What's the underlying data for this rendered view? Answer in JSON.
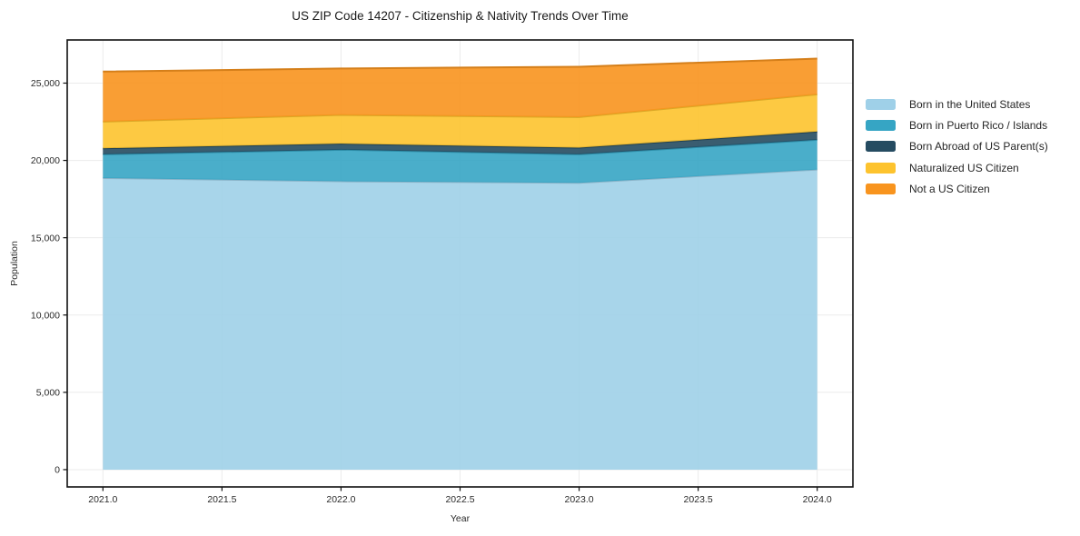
{
  "title": "US ZIP Code 14207 - Citizenship & Nativity Trends Over Time",
  "chart_data": {
    "type": "area",
    "stacked": true,
    "title": "US ZIP Code 14207 - Citizenship & Nativity Trends Over Time",
    "xlabel": "Year",
    "ylabel": "Population",
    "x": [
      2021,
      2022,
      2023,
      2024
    ],
    "series": [
      {
        "name": "Born in the United States",
        "color": "#9fd0e8",
        "values": [
          18860,
          18650,
          18550,
          19410
        ]
      },
      {
        "name": "Born in Puerto Rico / Islands",
        "color": "#36a5c4",
        "values": [
          1530,
          2040,
          1845,
          1925
        ]
      },
      {
        "name": "Born Abroad of US Parent(s)",
        "color": "#254b61",
        "values": [
          395,
          395,
          430,
          530
        ]
      },
      {
        "name": "Naturalized US Citizen",
        "color": "#fdc32e",
        "values": [
          1725,
          1855,
          1980,
          2410
        ]
      },
      {
        "name": "Not a US Citizen",
        "color": "#f8941e",
        "values": [
          3235,
          3005,
          3255,
          2310
        ]
      }
    ],
    "stack_totals": [
      25745,
      25945,
      26060,
      26585
    ],
    "xticks": [
      2021.0,
      2021.5,
      2022.0,
      2022.5,
      2023.0,
      2023.5,
      2024.0
    ],
    "yticks": [
      0,
      5000,
      10000,
      15000,
      20000,
      25000
    ],
    "xlim": [
      2020.85,
      2024.15
    ],
    "ylim": [
      -1120,
      27790
    ],
    "grid": true,
    "gridline_color": "#ebebeb",
    "spine_color": "#111111",
    "tick_label_color": "#2b2b2b",
    "legend_position": "outside-right"
  }
}
